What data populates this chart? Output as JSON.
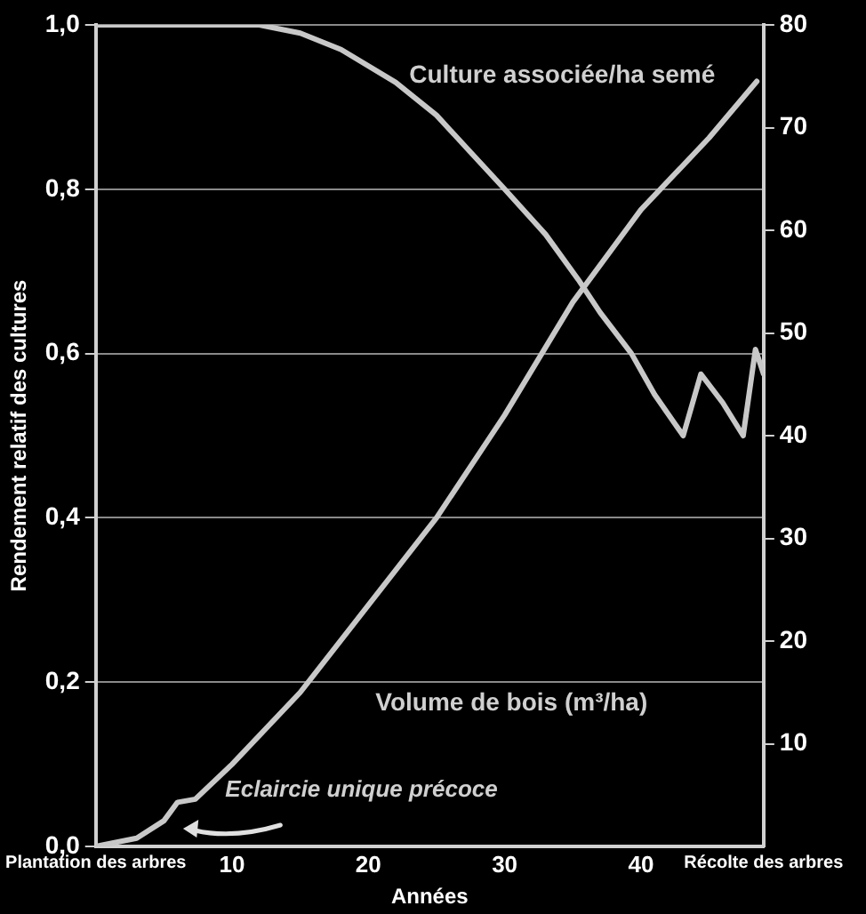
{
  "chart_data": {
    "type": "line",
    "xlabel": "Années",
    "ylabel": "Rendement relatif des cultures",
    "xlim": [
      0,
      49
    ],
    "xticks": [
      {
        "value": 0,
        "label": "Plantation des arbres"
      },
      10,
      20,
      30,
      40,
      {
        "value": 49,
        "label": "Récolte des arbres"
      }
    ],
    "ylim": [
      0,
      1
    ],
    "yticks": [
      {
        "value": 0,
        "label": "0,0"
      },
      {
        "value": 0.2,
        "label": "0,2"
      },
      {
        "value": 0.4,
        "label": "0,4"
      },
      {
        "value": 0.6,
        "label": "0,6"
      },
      {
        "value": 0.8,
        "label": "0,8"
      },
      {
        "value": 1,
        "label": "1,0"
      }
    ],
    "y2lim": [
      0,
      80
    ],
    "y2ticks": [
      10,
      20,
      30,
      40,
      50,
      60,
      70,
      80
    ],
    "grid": "y",
    "marker": "none",
    "line_style": "solid",
    "series": [
      {
        "name": "Culture associée/ha semé",
        "color": "#c8c8c8",
        "x": [
          0,
          5,
          10,
          12,
          15,
          18,
          22,
          25,
          27.5,
          30,
          33,
          35.4,
          37,
          39.3,
          41,
          43.1,
          44.4,
          46,
          47.5,
          48.4,
          49
        ],
        "values": [
          1,
          1,
          1,
          1,
          0.99,
          0.97,
          0.93,
          0.89,
          0.845,
          0.8,
          0.745,
          0.69,
          0.65,
          0.6,
          0.55,
          0.5,
          0.575,
          0.54,
          0.5,
          0.605,
          0.575
        ]
      },
      {
        "name": "Volume de bois (m³/ha)",
        "color": "#c8c8c8",
        "axis": "y2",
        "x": [
          0,
          3,
          5,
          6,
          7.3,
          10,
          15,
          20,
          25,
          30,
          35,
          40,
          45,
          48.5
        ],
        "values": [
          0,
          0.8,
          2.5,
          4.3,
          4.6,
          8,
          15,
          23.5,
          32,
          42,
          53,
          62,
          69,
          74.5
        ]
      }
    ],
    "annotations": [
      "Eclaircie unique précoce"
    ]
  }
}
